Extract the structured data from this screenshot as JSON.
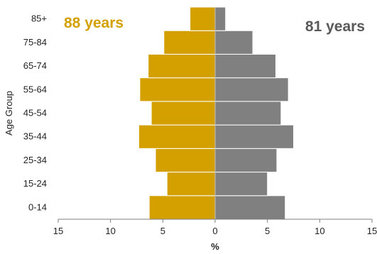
{
  "chart_data": {
    "type": "bar",
    "orientation": "horizontal",
    "layout": "population-pyramid",
    "categories": [
      "0-14",
      "15-24",
      "25-34",
      "35-44",
      "45-54",
      "55-64",
      "65-74",
      "75-84",
      "85+"
    ],
    "series": [
      {
        "values": [
          -6.3,
          -4.6,
          -5.7,
          -7.3,
          -6.1,
          -7.2,
          -6.4,
          -4.9,
          -2.4
        ],
        "color": "#D4A000"
      },
      {
        "values": [
          6.7,
          5.0,
          5.9,
          7.5,
          6.3,
          7.0,
          5.8,
          3.6,
          1.0
        ],
        "color": "#808080"
      }
    ],
    "xlabel": "%",
    "ylabel": "Age Group",
    "xlim": [
      -15,
      15
    ],
    "xticks": [
      -15,
      -10,
      -5,
      0,
      5,
      10,
      15
    ],
    "xtick_labels": [
      "15",
      "10",
      "5",
      "0",
      "5",
      "10",
      "15"
    ],
    "grid": false,
    "annotations": [
      {
        "text": "88 years",
        "color": "#D4A000",
        "position": "top-left"
      },
      {
        "text": "81 years",
        "color": "#595959",
        "position": "top-right"
      }
    ]
  }
}
